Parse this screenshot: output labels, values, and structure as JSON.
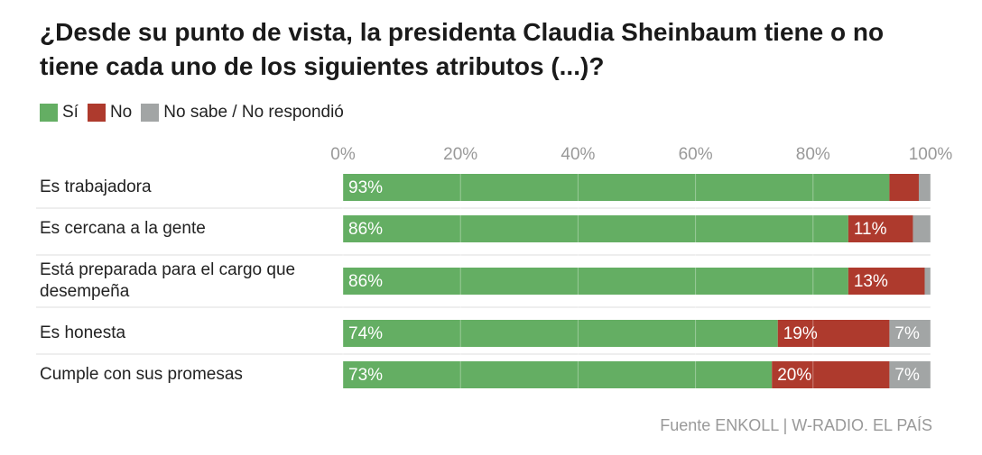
{
  "chart_data": {
    "type": "stacked-bar-horizontal",
    "title": "¿Desde su punto de vista, la presidenta Claudia Sheinbaum tiene o no tiene cada uno de los siguientes atributos (...)?",
    "categories": [
      "Es trabajadora",
      "Es cercana a la gente",
      "Está preparada para el cargo que desempeña",
      "Es honesta",
      "Cumple con sus promesas"
    ],
    "series": [
      {
        "name": "Sí",
        "color": "#64ae63",
        "values": [
          93,
          86,
          86,
          74,
          73
        ],
        "value_labels": [
          "93%",
          "86%",
          "86%",
          "74%",
          "73%"
        ]
      },
      {
        "name": "No",
        "color": "#ae3a2d",
        "values": [
          5,
          11,
          13,
          19,
          20
        ],
        "value_labels": [
          null,
          "11%",
          "13%",
          "19%",
          "20%"
        ]
      },
      {
        "name": "No sabe / No respondió",
        "color": "#a2a5a5",
        "values": [
          2,
          3,
          1,
          7,
          7
        ],
        "value_labels": [
          null,
          null,
          null,
          "7%",
          "7%"
        ]
      }
    ],
    "xlim": [
      0,
      100
    ],
    "xticks": [
      {
        "value": 0,
        "label": "0%"
      },
      {
        "value": 20,
        "label": "20%"
      },
      {
        "value": 40,
        "label": "40%"
      },
      {
        "value": 60,
        "label": "60%"
      },
      {
        "value": 80,
        "label": "80%"
      },
      {
        "value": 100,
        "label": "100%"
      }
    ],
    "grid": true,
    "source": "Fuente ENKOLL | W-RADIO. EL PAÍS"
  }
}
